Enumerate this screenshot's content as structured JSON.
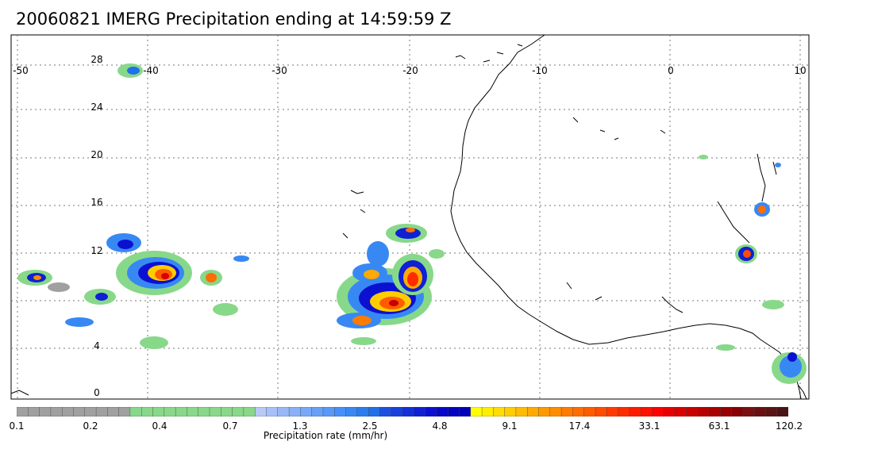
{
  "title": "20060821 IMERG Precipitation ending at 14:59:59 Z",
  "map": {
    "lon_ticks": [
      "-50",
      "-40",
      "-30",
      "-20",
      "-10",
      "0",
      "10"
    ],
    "lat_ticks": [
      "28",
      "24",
      "20",
      "16",
      "12",
      "4",
      "0"
    ],
    "lon_range": [
      -50,
      10
    ],
    "lat_range": [
      -0.5,
      30
    ],
    "gridlines": "dotted",
    "coastline_color": "#000000"
  },
  "colorbar": {
    "title": "Precipitation rate (mm/hr)",
    "labels": [
      "0.1",
      "0.2",
      "0.4",
      "0.7",
      "1.3",
      "2.5",
      "4.8",
      "9.1",
      "17.4",
      "33.1",
      "63.1",
      "120.2"
    ],
    "colors": [
      "#a0a0a0",
      "#a0a0a0",
      "#a0a0a0",
      "#a0a0a0",
      "#a0a0a0",
      "#a0a0a0",
      "#a0a0a0",
      "#a0a0a0",
      "#a0a0a0",
      "#a0a0a0",
      "#88d88a",
      "#88d88a",
      "#88d88a",
      "#88d88a",
      "#88d88a",
      "#88d88a",
      "#88d88a",
      "#88d88a",
      "#88d88a",
      "#88d88a",
      "#88d88a",
      "#b8c8f8",
      "#a8c0f8",
      "#98b8f8",
      "#88b0f8",
      "#78a8f8",
      "#68a0f8",
      "#5898f8",
      "#4890f8",
      "#3888f4",
      "#2c7cee",
      "#2070e8",
      "#1c50e0",
      "#1840dc",
      "#1430d8",
      "#1020d4",
      "#0c10d0",
      "#0808c8",
      "#0404c0",
      "#0000b8",
      "#ffff00",
      "#ffee00",
      "#ffdd00",
      "#ffcc00",
      "#ffbb00",
      "#ffaa00",
      "#ff9900",
      "#ff8c00",
      "#ff7c00",
      "#ff6c00",
      "#ff5c00",
      "#ff4c00",
      "#ff3c00",
      "#ff2c00",
      "#ff1c00",
      "#ff1000",
      "#ff0000",
      "#e80000",
      "#d80000",
      "#c80000",
      "#b80000",
      "#a80000",
      "#980000",
      "#880000",
      "#7a1010",
      "#6a1010",
      "#5a1414",
      "#4a1414"
    ]
  }
}
